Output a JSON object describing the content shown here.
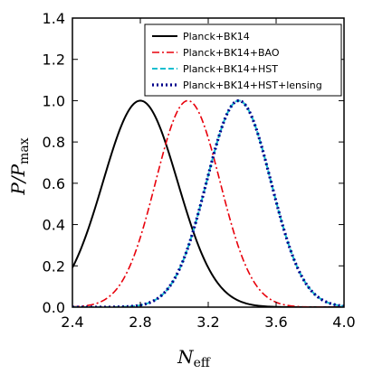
{
  "chart_data": {
    "type": "line",
    "xlabel": {
      "main": "N",
      "sub": "eff"
    },
    "ylabel": {
      "main": "P/P",
      "sub": "max"
    },
    "xlim": [
      2.4,
      4.0
    ],
    "ylim": [
      0.0,
      1.4
    ],
    "x_ticks": [
      2.4,
      2.8,
      3.2,
      3.6,
      4.0
    ],
    "x_tick_labels": [
      "2.4",
      "2.8",
      "3.2",
      "3.6",
      "4.0"
    ],
    "y_ticks": [
      0.0,
      0.2,
      0.4,
      0.6,
      0.8,
      1.0,
      1.2,
      1.4
    ],
    "y_tick_labels": [
      "0.0",
      "0.2",
      "0.4",
      "0.6",
      "0.8",
      "1.0",
      "1.2",
      "1.4"
    ],
    "grid": false,
    "legend_position": "top-right",
    "series": [
      {
        "name": "Planck+BK14",
        "color": "#000000",
        "style": "solid",
        "peak": 2.8,
        "sigma": 0.22
      },
      {
        "name": "Planck+BK14+BAO",
        "color": "#e8000b",
        "style": "dashdot",
        "peak": 3.08,
        "sigma": 0.19
      },
      {
        "name": "Planck+BK14+HST",
        "color": "#17becf",
        "style": "dashed",
        "peak": 3.38,
        "sigma": 0.19
      },
      {
        "name": "Planck+BK14+HST+lensing",
        "color": "#00008b",
        "style": "dotted",
        "peak": 3.38,
        "sigma": 0.19
      }
    ]
  }
}
